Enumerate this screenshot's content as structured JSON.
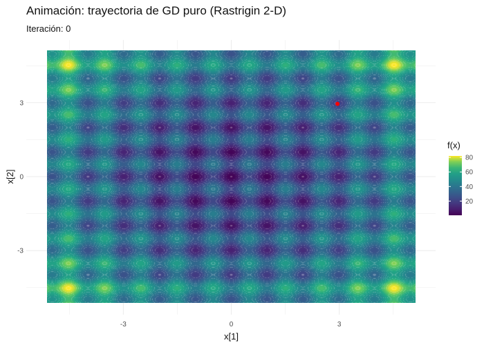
{
  "chart_data": {
    "type": "heatmap",
    "title": "Animación: trayectoria de GD puro (Rastrigin 2-D)",
    "subtitle": "Iteración: 0",
    "xlabel": "x[1]",
    "ylabel": "x[2]",
    "xlim": [
      -5.12,
      5.12
    ],
    "ylim": [
      -5.12,
      5.12
    ],
    "x_ticks": [
      -3,
      0,
      3
    ],
    "y_ticks": [
      3,
      0,
      -3
    ],
    "function": "Rastrigin",
    "fill_range": [
      0,
      80
    ],
    "colorscale": "viridis",
    "contour_lines": true,
    "grid": true,
    "legend": {
      "title": "f(x)",
      "ticks": [
        80,
        60,
        40,
        20
      ],
      "placement": "right"
    },
    "current_point": {
      "x": 2.95,
      "y": 2.95,
      "color": "#ff0000"
    }
  }
}
